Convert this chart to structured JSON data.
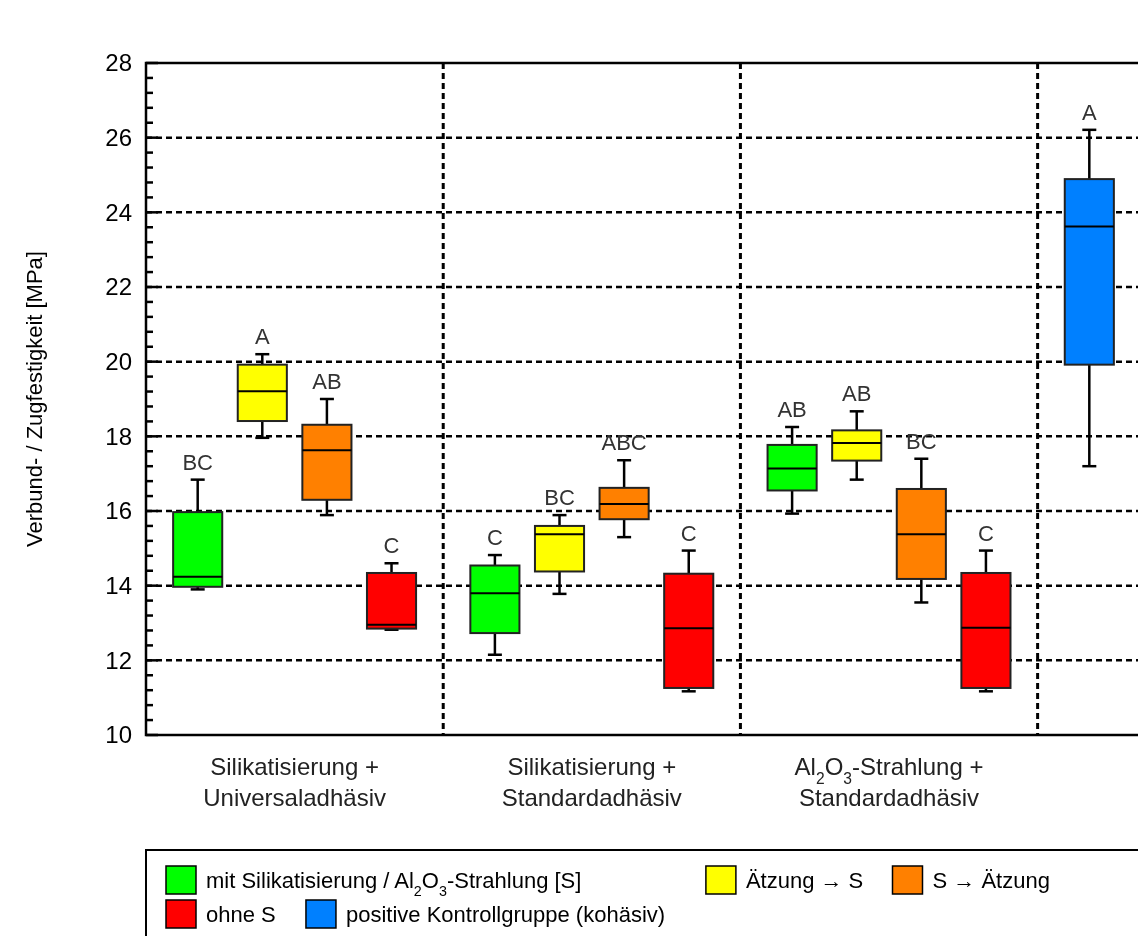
{
  "chart_data": {
    "type": "box",
    "ylabel": "Verbund- / Zugfestigkeit [MPa]",
    "categories": [
      "Silikatisierung +\nUniversaladhäsiv",
      "Silikatisierung +\nStandardadhäsiv",
      "Al$_{2}$O$_{3}$-Strahlung +\nStandardadhäsiv",
      null
    ],
    "ylim": [
      10,
      28
    ],
    "yticks": [
      10,
      {
        "value": 10.4,
        "label": null
      },
      {
        "value": 10.8,
        "label": null
      },
      {
        "value": 11.2,
        "label": null
      },
      {
        "value": 11.6,
        "label": null
      },
      12,
      {
        "value": 12.4,
        "label": null
      },
      {
        "value": 12.8,
        "label": null
      },
      {
        "value": 13.2,
        "label": null
      },
      {
        "value": 13.6,
        "label": null
      },
      14,
      {
        "value": 14.4,
        "label": null
      },
      {
        "value": 14.8,
        "label": null
      },
      {
        "value": 15.2,
        "label": null
      },
      {
        "value": 15.6,
        "label": null
      },
      16,
      {
        "value": 16.4,
        "label": null
      },
      {
        "value": 16.8,
        "label": null
      },
      {
        "value": 17.2,
        "label": null
      },
      {
        "value": 17.6,
        "label": null
      },
      18,
      {
        "value": 18.4,
        "label": null
      },
      {
        "value": 18.8,
        "label": null
      },
      {
        "value": 19.2,
        "label": null
      },
      {
        "value": 19.6,
        "label": null
      },
      20,
      {
        "value": 20.4,
        "label": null
      },
      {
        "value": 20.8,
        "label": null
      },
      {
        "value": 21.2,
        "label": null
      },
      {
        "value": 21.6,
        "label": null
      },
      22,
      {
        "value": 22.4,
        "label": null
      },
      {
        "value": 22.8,
        "label": null
      },
      {
        "value": 23.2,
        "label": null
      },
      {
        "value": 23.6,
        "label": null
      },
      24,
      {
        "value": 24.4,
        "label": null
      },
      {
        "value": 24.8,
        "label": null
      },
      {
        "value": 25.2,
        "label": null
      },
      {
        "value": 25.6,
        "label": null
      },
      26,
      {
        "value": 26.4,
        "label": null
      },
      {
        "value": 26.8,
        "label": null
      },
      {
        "value": 27.2,
        "label": null
      },
      {
        "value": 27.6,
        "label": null
      },
      28
    ],
    "grid": true,
    "legend": "bottom",
    "series": [
      {
        "name": "mit Silikatisierung / Al$_{2}$O$_{3}$-Strahlung [S]",
        "color": "#00ff00",
        "value_labels": [
          "BC",
          "C",
          "AB",
          null
        ],
        "boxes": [
          {
            "low": 13.9,
            "q1": 13.97,
            "median": 14.24,
            "q3": 15.97,
            "high": 16.84
          },
          {
            "low": 12.15,
            "q1": 12.73,
            "median": 13.8,
            "q3": 14.54,
            "high": 14.82
          },
          {
            "low": 15.93,
            "q1": 16.55,
            "median": 17.14,
            "q3": 17.77,
            "high": 18.25
          },
          null
        ]
      },
      {
        "name": "Ätzung → S",
        "color": "#ffff00",
        "value_labels": [
          "A",
          "BC",
          "AB",
          null
        ],
        "boxes": [
          {
            "low": 17.96,
            "q1": 18.41,
            "median": 19.21,
            "q3": 19.92,
            "high": 20.2
          },
          {
            "low": 13.78,
            "q1": 14.38,
            "median": 15.38,
            "q3": 15.6,
            "high": 15.89
          },
          {
            "low": 16.84,
            "q1": 17.35,
            "median": 17.82,
            "q3": 18.16,
            "high": 18.67
          },
          null
        ]
      },
      {
        "name": "S → Ätzung",
        "color": "#ff8000",
        "value_labels": [
          "AB",
          "ABC",
          "BC",
          null
        ],
        "boxes": [
          {
            "low": 15.89,
            "q1": 16.3,
            "median": 17.63,
            "q3": 18.31,
            "high": 19.0
          },
          {
            "low": 15.3,
            "q1": 15.78,
            "median": 16.19,
            "q3": 16.62,
            "high": 17.36
          },
          {
            "low": 13.55,
            "q1": 14.18,
            "median": 15.38,
            "q3": 16.59,
            "high": 17.4
          },
          null
        ]
      },
      {
        "name": "ohne S",
        "color": "#ff0000",
        "value_labels": [
          "C",
          "C",
          "C",
          null
        ],
        "boxes": [
          {
            "low": 12.82,
            "q1": 12.85,
            "median": 12.95,
            "q3": 14.34,
            "high": 14.6
          },
          {
            "low": 11.17,
            "q1": 11.26,
            "median": 12.86,
            "q3": 14.32,
            "high": 14.94
          },
          {
            "low": 11.17,
            "q1": 11.26,
            "median": 12.87,
            "q3": 14.34,
            "high": 14.94
          },
          null
        ]
      },
      {
        "name": "positive Kontrollgruppe (kohäsiv)",
        "color": "#0080ff",
        "value_labels": [
          null,
          null,
          null,
          "A"
        ],
        "boxes": [
          null,
          null,
          null,
          {
            "low": 17.2,
            "q1": 19.92,
            "median": 23.62,
            "q3": 24.89,
            "high": 26.21
          }
        ]
      }
    ]
  }
}
